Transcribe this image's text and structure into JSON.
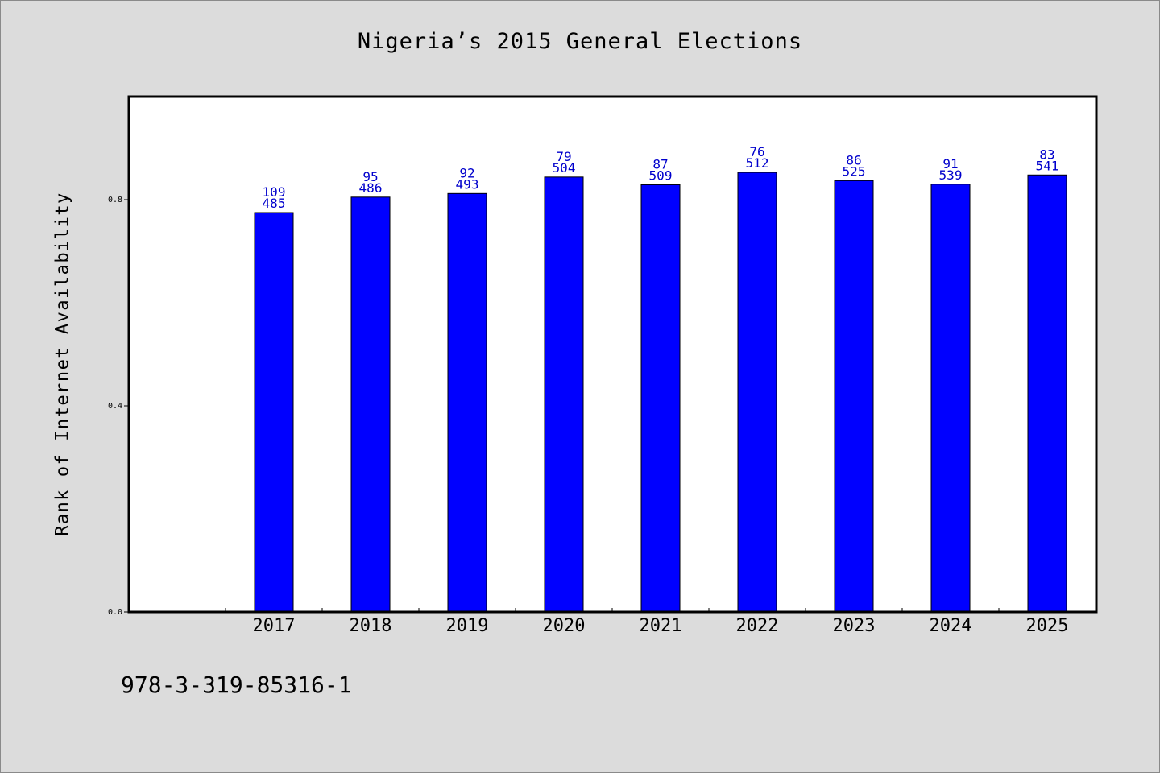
{
  "chart_data": {
    "type": "bar",
    "title": "Nigeria’s 2015 General Elections",
    "xlabel": "",
    "ylabel": "Rank of Internet Availability",
    "categories": [
      "2017",
      "2018",
      "2019",
      "2020",
      "2021",
      "2022",
      "2023",
      "2024",
      "2025"
    ],
    "series": [
      {
        "values": [
          0.775,
          0.805,
          0.812,
          0.844,
          0.829,
          0.853,
          0.837,
          0.83,
          0.848
        ],
        "labels_top": [
          "109",
          "95",
          "92",
          "79",
          "87",
          "76",
          "86",
          "91",
          "83"
        ],
        "labels_bottom": [
          "485",
          "486",
          "493",
          "504",
          "509",
          "512",
          "525",
          "539",
          "541"
        ]
      }
    ],
    "ylim": [
      0,
      1.0
    ],
    "y_ticks": [
      "0.0",
      "0.4",
      "0.8"
    ],
    "y_tick_values": [
      0.0,
      0.4,
      0.8
    ],
    "grid": false,
    "bar_color": "#0000ff",
    "label_color": "#0000cc",
    "background_color": "#dcdcdc",
    "plot_background": "#ffffff"
  },
  "footer": {
    "code": "978-3-319-85316-1"
  }
}
